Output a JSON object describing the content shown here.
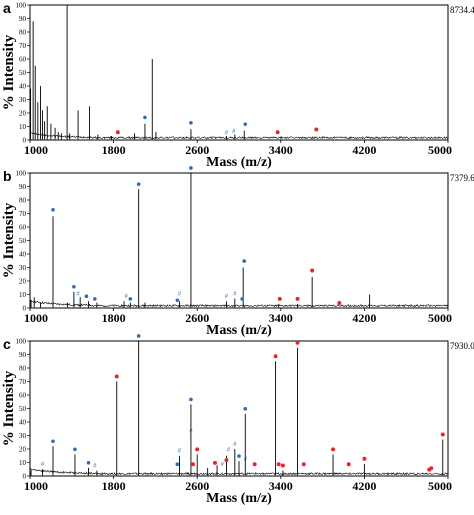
{
  "chart_data": [
    {
      "panel": "a",
      "type": "line",
      "max_intensity_label": "8734.4",
      "xlabel": "Mass (m/z)",
      "ylabel": "% Intensity",
      "x_ticks": [
        "1000",
        "1800",
        "2600",
        "3400",
        "4200",
        "5000"
      ],
      "y_ticks": [
        "0",
        "10",
        "20",
        "30",
        "40",
        "50",
        "60",
        "70",
        "80",
        "90",
        "100"
      ],
      "xlim": [
        1000,
        5000
      ],
      "ylim": [
        0,
        100
      ],
      "peaks": [
        {
          "x": 1005,
          "y": 38
        },
        {
          "x": 1030,
          "y": 88
        },
        {
          "x": 1050,
          "y": 55
        },
        {
          "x": 1075,
          "y": 28
        },
        {
          "x": 1100,
          "y": 40
        },
        {
          "x": 1120,
          "y": 22
        },
        {
          "x": 1140,
          "y": 14
        },
        {
          "x": 1165,
          "y": 25
        },
        {
          "x": 1200,
          "y": 12
        },
        {
          "x": 1240,
          "y": 9
        },
        {
          "x": 1270,
          "y": 6
        },
        {
          "x": 1300,
          "y": 5
        },
        {
          "x": 1355,
          "y": 100
        },
        {
          "x": 1380,
          "y": 5
        },
        {
          "x": 1460,
          "y": 22
        },
        {
          "x": 1570,
          "y": 25
        },
        {
          "x": 1650,
          "y": 4
        },
        {
          "x": 1780,
          "y": 3
        },
        {
          "x": 2000,
          "y": 5
        },
        {
          "x": 2100,
          "y": 12
        },
        {
          "x": 2170,
          "y": 60
        },
        {
          "x": 2205,
          "y": 6
        },
        {
          "x": 2540,
          "y": 8
        },
        {
          "x": 2880,
          "y": 3
        },
        {
          "x": 2960,
          "y": 4
        },
        {
          "x": 3050,
          "y": 7
        }
      ],
      "markers": [
        {
          "x": 1840,
          "y": 5,
          "kind": "red"
        },
        {
          "x": 2100,
          "y": 16,
          "kind": "blue"
        },
        {
          "x": 2540,
          "y": 12,
          "kind": "blue"
        },
        {
          "x": 2880,
          "y": 5,
          "kind": "hash"
        },
        {
          "x": 2950,
          "y": 6,
          "kind": "hash"
        },
        {
          "x": 3060,
          "y": 11,
          "kind": "blue"
        },
        {
          "x": 3370,
          "y": 5,
          "kind": "red"
        },
        {
          "x": 3740,
          "y": 7,
          "kind": "red"
        }
      ]
    },
    {
      "panel": "b",
      "type": "line",
      "max_intensity_label": "7379.6",
      "xlabel": "Mass (m/z)",
      "ylabel": "% Intensity",
      "x_ticks": [
        "1000",
        "1800",
        "2600",
        "3400",
        "4200",
        "5000"
      ],
      "y_ticks": [
        "0",
        "10",
        "20",
        "30",
        "40",
        "50",
        "60",
        "70",
        "80",
        "90",
        "100"
      ],
      "xlim": [
        1000,
        5000
      ],
      "ylim": [
        0,
        100
      ],
      "peaks": [
        {
          "x": 1010,
          "y": 6
        },
        {
          "x": 1040,
          "y": 8
        },
        {
          "x": 1100,
          "y": 4
        },
        {
          "x": 1220,
          "y": 68
        },
        {
          "x": 1360,
          "y": 4
        },
        {
          "x": 1420,
          "y": 12
        },
        {
          "x": 1480,
          "y": 8
        },
        {
          "x": 1560,
          "y": 5
        },
        {
          "x": 1640,
          "y": 4
        },
        {
          "x": 1900,
          "y": 5
        },
        {
          "x": 1960,
          "y": 4
        },
        {
          "x": 2040,
          "y": 88
        },
        {
          "x": 2100,
          "y": 4
        },
        {
          "x": 2430,
          "y": 5
        },
        {
          "x": 2540,
          "y": 100
        },
        {
          "x": 2880,
          "y": 5
        },
        {
          "x": 2960,
          "y": 7
        },
        {
          "x": 3040,
          "y": 30
        },
        {
          "x": 3380,
          "y": 3
        },
        {
          "x": 3560,
          "y": 3
        },
        {
          "x": 3700,
          "y": 23
        },
        {
          "x": 4250,
          "y": 10
        }
      ],
      "markers": [
        {
          "x": 1220,
          "y": 72,
          "kind": "blue"
        },
        {
          "x": 1420,
          "y": 15,
          "kind": "blue"
        },
        {
          "x": 1460,
          "y": 10,
          "kind": "hash"
        },
        {
          "x": 1540,
          "y": 8,
          "kind": "blue"
        },
        {
          "x": 1620,
          "y": 6,
          "kind": "blue"
        },
        {
          "x": 1920,
          "y": 8,
          "kind": "hash"
        },
        {
          "x": 1960,
          "y": 6,
          "kind": "blue"
        },
        {
          "x": 2040,
          "y": 91,
          "kind": "blue"
        },
        {
          "x": 2430,
          "y": 10,
          "kind": "hash"
        },
        {
          "x": 2410,
          "y": 5,
          "kind": "blue"
        },
        {
          "x": 2540,
          "y": 103,
          "kind": "blue"
        },
        {
          "x": 2880,
          "y": 8,
          "kind": "hash"
        },
        {
          "x": 2960,
          "y": 10,
          "kind": "hash"
        },
        {
          "x": 3030,
          "y": 6,
          "kind": "blue"
        },
        {
          "x": 3050,
          "y": 34,
          "kind": "blue"
        },
        {
          "x": 3390,
          "y": 6,
          "kind": "red"
        },
        {
          "x": 3560,
          "y": 6,
          "kind": "red"
        },
        {
          "x": 3700,
          "y": 27,
          "kind": "red"
        },
        {
          "x": 3960,
          "y": 3,
          "kind": "red"
        }
      ]
    },
    {
      "panel": "c",
      "type": "line",
      "max_intensity_label": "7930.0",
      "xlabel": "Mass (m/z)",
      "ylabel": "% Intensity",
      "x_ticks": [
        "1000",
        "1800",
        "2600",
        "3400",
        "4200",
        "5000"
      ],
      "y_ticks": [
        "0",
        "10",
        "20",
        "30",
        "40",
        "50",
        "60",
        "70",
        "80",
        "90",
        "100"
      ],
      "xlim": [
        1000,
        5000
      ],
      "ylim": [
        0,
        100
      ],
      "peaks": [
        {
          "x": 1010,
          "y": 4
        },
        {
          "x": 1120,
          "y": 5
        },
        {
          "x": 1220,
          "y": 22
        },
        {
          "x": 1430,
          "y": 16
        },
        {
          "x": 1560,
          "y": 6
        },
        {
          "x": 1640,
          "y": 4
        },
        {
          "x": 1830,
          "y": 70
        },
        {
          "x": 2040,
          "y": 100
        },
        {
          "x": 2430,
          "y": 15
        },
        {
          "x": 2540,
          "y": 53
        },
        {
          "x": 2600,
          "y": 16
        },
        {
          "x": 2700,
          "y": 6
        },
        {
          "x": 2790,
          "y": 8
        },
        {
          "x": 2880,
          "y": 15
        },
        {
          "x": 2960,
          "y": 20
        },
        {
          "x": 3000,
          "y": 11
        },
        {
          "x": 3060,
          "y": 46
        },
        {
          "x": 3350,
          "y": 85
        },
        {
          "x": 3420,
          "y": 4
        },
        {
          "x": 3560,
          "y": 95
        },
        {
          "x": 3900,
          "y": 16
        },
        {
          "x": 4200,
          "y": 9
        },
        {
          "x": 4950,
          "y": 27
        }
      ],
      "markers": [
        {
          "x": 1120,
          "y": 8,
          "kind": "hash"
        },
        {
          "x": 1220,
          "y": 25,
          "kind": "blue"
        },
        {
          "x": 1430,
          "y": 19,
          "kind": "blue"
        },
        {
          "x": 1560,
          "y": 9,
          "kind": "blue"
        },
        {
          "x": 1620,
          "y": 7,
          "kind": "hash"
        },
        {
          "x": 1830,
          "y": 73,
          "kind": "red"
        },
        {
          "x": 2040,
          "y": 103,
          "kind": "blue"
        },
        {
          "x": 2430,
          "y": 18,
          "kind": "hash"
        },
        {
          "x": 2410,
          "y": 8,
          "kind": "blue"
        },
        {
          "x": 2540,
          "y": 56,
          "kind": "blue"
        },
        {
          "x": 2540,
          "y": 33,
          "kind": "hash"
        },
        {
          "x": 2600,
          "y": 19,
          "kind": "red"
        },
        {
          "x": 2560,
          "y": 8,
          "kind": "red"
        },
        {
          "x": 2770,
          "y": 9,
          "kind": "red"
        },
        {
          "x": 2840,
          "y": 8,
          "kind": "hash"
        },
        {
          "x": 2880,
          "y": 11,
          "kind": "red"
        },
        {
          "x": 2900,
          "y": 19,
          "kind": "hash"
        },
        {
          "x": 2960,
          "y": 23,
          "kind": "hash"
        },
        {
          "x": 3000,
          "y": 14,
          "kind": "blue"
        },
        {
          "x": 3060,
          "y": 49,
          "kind": "blue"
        },
        {
          "x": 3060,
          "y": 12,
          "kind": "hash"
        },
        {
          "x": 3150,
          "y": 8,
          "kind": "red"
        },
        {
          "x": 3350,
          "y": 88,
          "kind": "red"
        },
        {
          "x": 3380,
          "y": 8,
          "kind": "red"
        },
        {
          "x": 3420,
          "y": 7,
          "kind": "red"
        },
        {
          "x": 3560,
          "y": 98,
          "kind": "red"
        },
        {
          "x": 3620,
          "y": 8,
          "kind": "red"
        },
        {
          "x": 3900,
          "y": 19,
          "kind": "red"
        },
        {
          "x": 4050,
          "y": 8,
          "kind": "red"
        },
        {
          "x": 4200,
          "y": 12,
          "kind": "red"
        },
        {
          "x": 4820,
          "y": 4,
          "kind": "red"
        },
        {
          "x": 4840,
          "y": 5,
          "kind": "red"
        },
        {
          "x": 4950,
          "y": 30,
          "kind": "red"
        }
      ]
    }
  ],
  "colors": {
    "blue_marker": "#2a6fb5",
    "red_marker": "#e8262b",
    "trace": "#000000"
  }
}
